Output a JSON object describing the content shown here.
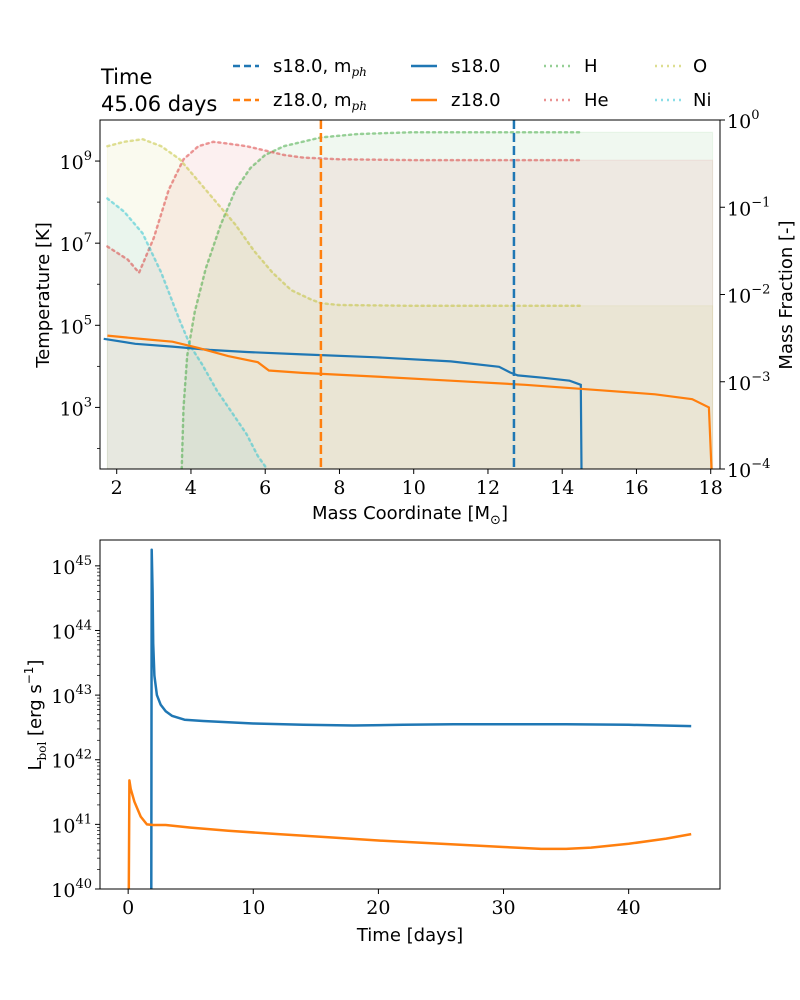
{
  "colors": {
    "blue": "#1f77b4",
    "orange": "#ff7f0e",
    "H": "#2ca02c",
    "He": "#d62728",
    "O": "#bcbd22",
    "Ni": "#17becf"
  },
  "header": {
    "time_label": "Time",
    "time_value": "45.06 days"
  },
  "legend": [
    {
      "label": "s18.0, m",
      "sub": "ph",
      "color": "blue",
      "style": "dashed"
    },
    {
      "label": "z18.0, m",
      "sub": "ph",
      "color": "orange",
      "style": "dashed"
    },
    {
      "label": "s18.0",
      "color": "blue",
      "style": "solid"
    },
    {
      "label": "z18.0",
      "color": "orange",
      "style": "solid"
    },
    {
      "label": "H",
      "color": "H",
      "style": "dotted"
    },
    {
      "label": "He",
      "color": "He",
      "style": "dotted"
    },
    {
      "label": "O",
      "color": "O",
      "style": "dotted"
    },
    {
      "label": "Ni",
      "color": "Ni",
      "style": "dotted"
    }
  ],
  "chart_data": [
    {
      "type": "line",
      "id": "profiles",
      "xlabel": "Mass Coordinate [M",
      "xlabel_sub": "⊙",
      "xlabel_end": "]",
      "ylabel": "Temperature [K]",
      "y2label": "Mass Fraction [-]",
      "xlim": [
        1.55,
        18.25
      ],
      "ylim_log": [
        1.5,
        10.0
      ],
      "y2lim_log": [
        -4,
        0
      ],
      "xticks": [
        {
          "v": 2,
          "label": "2"
        },
        {
          "v": 4,
          "label": "4"
        },
        {
          "v": 6,
          "label": "6"
        },
        {
          "v": 8,
          "label": "8"
        },
        {
          "v": 10,
          "label": "10"
        },
        {
          "v": 12,
          "label": "12"
        },
        {
          "v": 14,
          "label": "14"
        },
        {
          "v": 16,
          "label": "16"
        },
        {
          "v": 18,
          "label": "18"
        }
      ],
      "yticks": [
        {
          "exp": 3,
          "base": "10",
          "sup": "3"
        },
        {
          "exp": 5,
          "base": "10",
          "sup": "5"
        },
        {
          "exp": 7,
          "base": "10",
          "sup": "7"
        },
        {
          "exp": 9,
          "base": "10",
          "sup": "9"
        }
      ],
      "y2ticks": [
        {
          "exp": -4,
          "base": "10",
          "sup": "−4"
        },
        {
          "exp": -3,
          "base": "10",
          "sup": "−3"
        },
        {
          "exp": -2,
          "base": "10",
          "sup": "−2"
        },
        {
          "exp": -1,
          "base": "10",
          "sup": "−1"
        },
        {
          "exp": 0,
          "base": "10",
          "sup": "0"
        }
      ],
      "photosphere": [
        {
          "name": "s18.0, m_ph",
          "color": "blue",
          "x": 12.7
        },
        {
          "name": "z18.0, m_ph",
          "color": "orange",
          "x": 7.5
        }
      ],
      "temperature_series": [
        {
          "name": "s18.0",
          "color": "blue",
          "x": [
            1.65,
            2.5,
            3.5,
            4.5,
            5.5,
            7,
            9,
            11,
            12.3,
            12.6,
            12.8,
            13.5,
            14.2,
            14.5,
            14.52
          ],
          "log10_T": [
            4.67,
            4.55,
            4.48,
            4.4,
            4.35,
            4.29,
            4.22,
            4.12,
            3.99,
            3.85,
            3.78,
            3.72,
            3.65,
            3.55,
            1.5
          ]
        },
        {
          "name": "z18.0",
          "color": "orange",
          "x": [
            1.75,
            2.5,
            3.5,
            4.2,
            5,
            5.8,
            6.1,
            7,
            9,
            11,
            13,
            15,
            16.5,
            17.5,
            17.95,
            18.02
          ],
          "log10_T": [
            4.75,
            4.68,
            4.6,
            4.45,
            4.25,
            4.1,
            3.9,
            3.84,
            3.75,
            3.65,
            3.55,
            3.42,
            3.32,
            3.2,
            3.0,
            1.5
          ]
        }
      ],
      "abundance_series": [
        {
          "name": "H",
          "color": "H",
          "x": [
            3.75,
            3.8,
            3.9,
            4.1,
            4.4,
            4.8,
            5.2,
            5.6,
            6,
            6.5,
            7,
            7.5,
            8.5,
            10,
            12,
            14.5
          ],
          "log10_X": [
            -4,
            -3.3,
            -2.7,
            -2.2,
            -1.7,
            -1.2,
            -0.8,
            -0.55,
            -0.4,
            -0.3,
            -0.25,
            -0.2,
            -0.16,
            -0.14,
            -0.14,
            -0.14
          ]
        },
        {
          "name": "He",
          "color": "He",
          "x": [
            1.75,
            2.3,
            2.6,
            3.0,
            3.4,
            3.8,
            4.2,
            4.6,
            5.0,
            5.5,
            6.0,
            6.5,
            7,
            8,
            10,
            12,
            14.5
          ],
          "log10_X": [
            -1.45,
            -1.6,
            -1.75,
            -1.35,
            -0.8,
            -0.45,
            -0.3,
            -0.25,
            -0.27,
            -0.3,
            -0.35,
            -0.4,
            -0.43,
            -0.45,
            -0.46,
            -0.46,
            -0.46
          ]
        },
        {
          "name": "O",
          "color": "O",
          "x": [
            1.75,
            2.2,
            2.7,
            3.2,
            3.7,
            4.2,
            4.7,
            5.2,
            5.7,
            6.2,
            6.7,
            7.2,
            7.5,
            8,
            10,
            12,
            14.5
          ],
          "log10_X": [
            -0.3,
            -0.25,
            -0.22,
            -0.3,
            -0.45,
            -0.7,
            -0.95,
            -1.2,
            -1.5,
            -1.75,
            -1.95,
            -2.05,
            -2.1,
            -2.12,
            -2.13,
            -2.13,
            -2.13
          ]
        },
        {
          "name": "Ni",
          "color": "Ni",
          "x": [
            1.75,
            2.2,
            2.7,
            3.2,
            3.7,
            4.0,
            4.3,
            4.7,
            5.1,
            5.5,
            5.8,
            6.05
          ],
          "log10_X": [
            -0.9,
            -1.05,
            -1.3,
            -1.75,
            -2.3,
            -2.6,
            -2.8,
            -3.1,
            -3.35,
            -3.6,
            -3.85,
            -4
          ]
        }
      ]
    },
    {
      "type": "line",
      "id": "lightcurve",
      "xlabel": "Time [days]",
      "ylabel": "L",
      "ylabel_sub": "bol",
      "ylabel_end": " [erg s",
      "ylabel_sup": "−1",
      "ylabel_close": "]",
      "xlim": [
        -2.25,
        47.3
      ],
      "ylim_log": [
        40,
        45.4
      ],
      "xticks": [
        {
          "v": 0,
          "label": "0"
        },
        {
          "v": 10,
          "label": "10"
        },
        {
          "v": 20,
          "label": "20"
        },
        {
          "v": 30,
          "label": "30"
        },
        {
          "v": 40,
          "label": "40"
        }
      ],
      "yticks": [
        {
          "exp": 40,
          "base": "10",
          "sup": "40"
        },
        {
          "exp": 41,
          "base": "10",
          "sup": "41"
        },
        {
          "exp": 42,
          "base": "10",
          "sup": "42"
        },
        {
          "exp": 43,
          "base": "10",
          "sup": "43"
        },
        {
          "exp": 44,
          "base": "10",
          "sup": "44"
        },
        {
          "exp": 45,
          "base": "10",
          "sup": "45"
        }
      ],
      "series": [
        {
          "name": "s18.0",
          "color": "blue",
          "x": [
            1.85,
            1.88,
            1.95,
            2.0,
            2.1,
            2.3,
            2.6,
            3.0,
            3.5,
            4.5,
            6,
            8,
            10,
            14,
            18,
            22,
            26,
            30,
            35,
            40,
            45
          ],
          "log10_L": [
            40,
            45.25,
            44.6,
            43.8,
            43.3,
            43.0,
            42.85,
            42.75,
            42.68,
            42.62,
            42.6,
            42.58,
            42.56,
            42.54,
            42.53,
            42.54,
            42.55,
            42.55,
            42.55,
            42.54,
            42.52
          ]
        },
        {
          "name": "z18.0",
          "color": "orange",
          "x": [
            0.05,
            0.1,
            0.2,
            0.5,
            1.0,
            1.5,
            2.0,
            3,
            5,
            8,
            12,
            16,
            20,
            25,
            30,
            33,
            35,
            37,
            40,
            43,
            45
          ],
          "log10_L": [
            40,
            41.68,
            41.55,
            41.35,
            41.12,
            41.0,
            40.99,
            40.99,
            40.95,
            40.9,
            40.85,
            40.8,
            40.75,
            40.7,
            40.65,
            40.62,
            40.62,
            40.64,
            40.7,
            40.78,
            40.85
          ]
        }
      ]
    }
  ]
}
